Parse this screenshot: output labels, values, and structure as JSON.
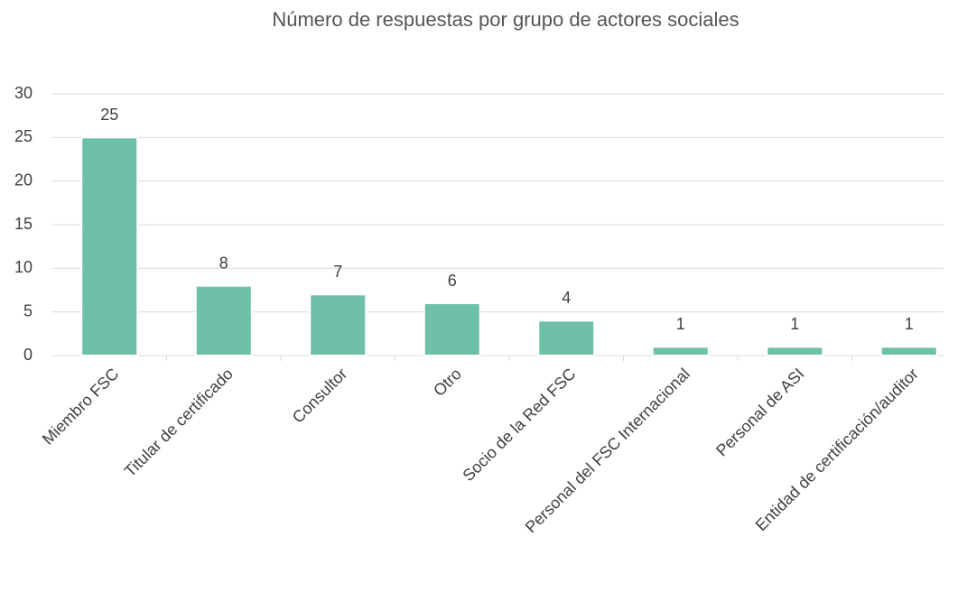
{
  "chart_data": {
    "type": "bar",
    "title": "Número de respuestas por grupo de actores sociales",
    "categories": [
      "Miembro FSC",
      "Titular de certificado",
      "Consultor",
      "Otro",
      "Socio de la Red FSC",
      "Personal del FSC Internacional",
      "Personal de ASI",
      "Entidad de certificación/auditor"
    ],
    "values": [
      25,
      8,
      7,
      6,
      4,
      1,
      1,
      1
    ],
    "color": "#6fc0a8",
    "ylim": [
      0,
      30
    ],
    "yticks": [
      0,
      5,
      10,
      15,
      20,
      25,
      30
    ],
    "grid": true
  }
}
